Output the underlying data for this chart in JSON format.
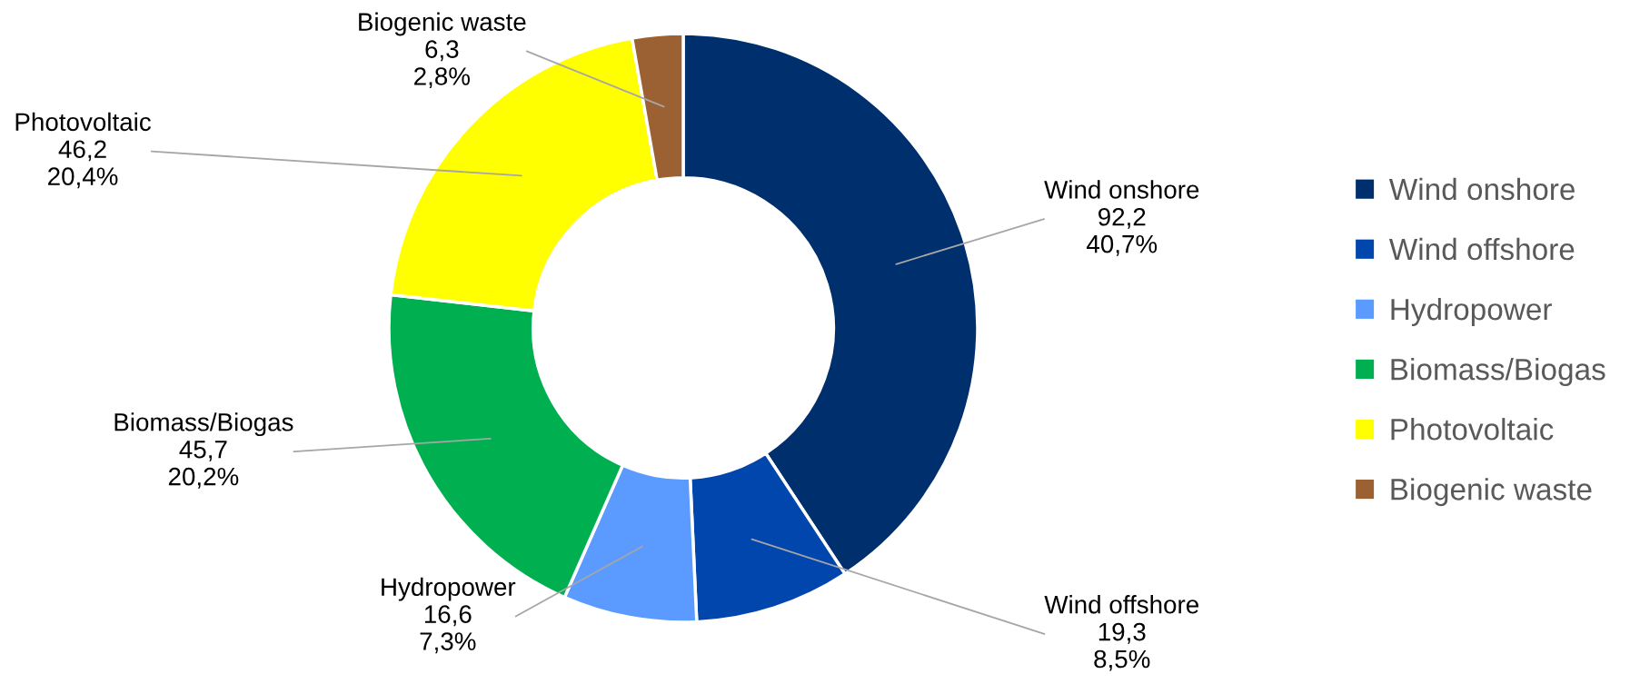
{
  "chart_data": {
    "type": "donut",
    "categories": [
      "Wind onshore",
      "Wind offshore",
      "Hydropower",
      "Biomass/Biogas",
      "Photovoltaic",
      "Biogenic waste"
    ],
    "values": [
      92.2,
      19.3,
      16.6,
      45.7,
      46.2,
      6.3
    ],
    "colors": [
      "#002f6e",
      "#0046ad",
      "#5b9bff",
      "#00b050",
      "#ffff00",
      "#9b6132"
    ],
    "value_labels": [
      "92,2\n40,7%",
      "19,3\n8,5%",
      "16,6\n7,3%",
      "45,7\n20,2%",
      "46,2\n20,4%",
      "6,3\n2,8%"
    ],
    "legend": "right"
  }
}
